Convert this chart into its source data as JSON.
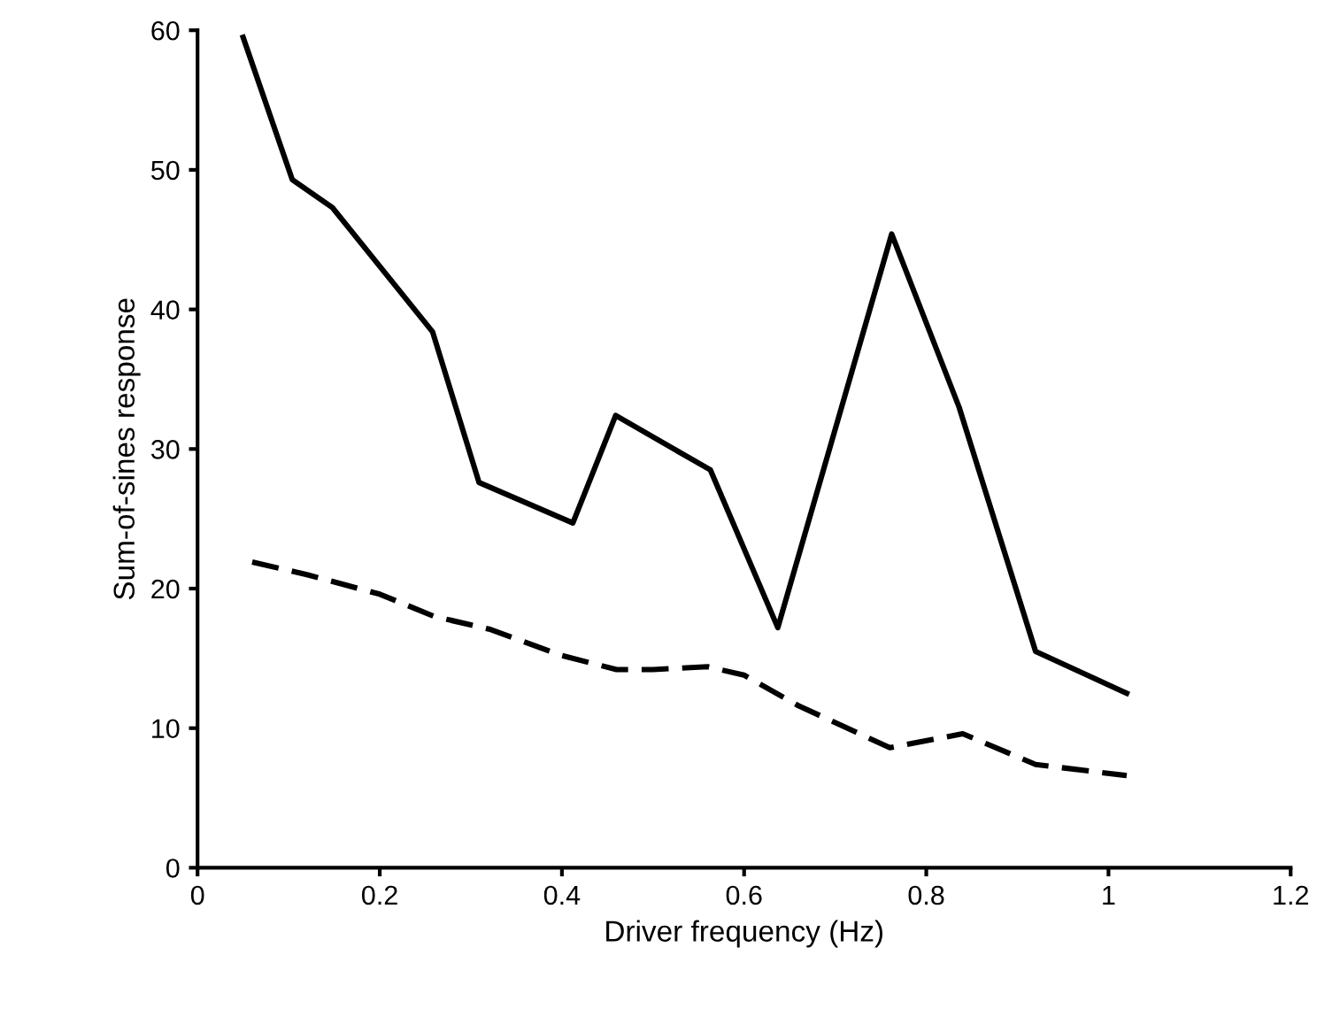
{
  "chart_data": {
    "type": "line",
    "xlabel": "Driver frequency (Hz)",
    "ylabel": "Sum-of-sines response",
    "xlim": [
      0,
      1.2
    ],
    "ylim": [
      0,
      60
    ],
    "xticks": [
      0,
      0.2,
      0.4,
      0.6,
      0.8,
      1,
      1.2
    ],
    "yticks": [
      0,
      10,
      20,
      30,
      40,
      50,
      60
    ],
    "grid": false,
    "legend": false,
    "series": [
      {
        "color": "#000000",
        "line_style": "solid",
        "x": [
          0.05,
          0.104,
          0.148,
          0.258,
          0.309,
          0.412,
          0.459,
          0.563,
          0.637,
          0.762,
          0.836,
          0.92,
          1.02
        ],
        "values": [
          59.5,
          49.3,
          47.3,
          38.4,
          27.6,
          24.7,
          32.4,
          28.5,
          17.2,
          45.4,
          33,
          15.5,
          12.5
        ]
      },
      {
        "color": "#000000",
        "line_style": "dashed",
        "x": [
          0.06,
          0.12,
          0.2,
          0.26,
          0.32,
          0.4,
          0.46,
          0.5,
          0.56,
          0.6,
          0.66,
          0.76,
          0.84,
          0.92,
          1.02
        ],
        "values": [
          21.9,
          21,
          19.6,
          18,
          17.1,
          15.2,
          14.2,
          14.2,
          14.4,
          13.8,
          11.6,
          8.6,
          9.6,
          7.4,
          6.6
        ]
      }
    ]
  }
}
